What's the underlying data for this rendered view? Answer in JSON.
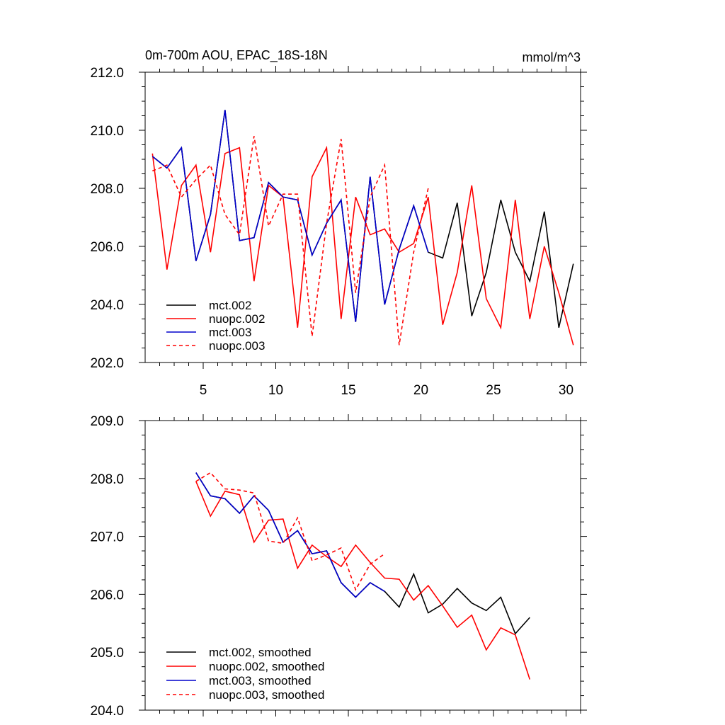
{
  "chart_data": [
    {
      "type": "line",
      "title": "0m-700m AOU, EPAC_18S-18N",
      "units": "mmol/m^3",
      "xlabel": "",
      "ylabel": "",
      "xlim": [
        1,
        31
      ],
      "ylim": [
        202,
        212
      ],
      "yticks": [
        "202.0",
        "204.0",
        "206.0",
        "208.0",
        "210.0",
        "212.0"
      ],
      "xticks": [
        "5",
        "10",
        "15",
        "20",
        "25",
        "30"
      ],
      "legend_position": "lower-left",
      "series": [
        {
          "name": "mct.002",
          "color": "#000000",
          "dash": "solid",
          "x": [
            1.5,
            2.5,
            3.5,
            4.5,
            5.5,
            6.5,
            7.5,
            8.5,
            9.5,
            10.5,
            11.5,
            12.5,
            13.5,
            14.5,
            15.5,
            16.5,
            17.5,
            18.5,
            19.5,
            20.5,
            21.5,
            22.5,
            23.5,
            24.5,
            25.5,
            26.5,
            27.5,
            28.5,
            29.5,
            30.5
          ],
          "values": [
            209.1,
            208.7,
            209.4,
            205.5,
            207.1,
            210.7,
            206.2,
            206.3,
            208.2,
            207.7,
            207.6,
            205.7,
            206.8,
            207.6,
            203.4,
            208.4,
            204.0,
            205.9,
            207.4,
            205.8,
            205.6,
            207.5,
            203.6,
            205.1,
            207.6,
            205.8,
            204.8,
            207.2,
            203.2,
            205.4
          ]
        },
        {
          "name": "nuopc.002",
          "color": "#ff0000",
          "dash": "solid",
          "x": [
            1.5,
            2.5,
            3.5,
            4.5,
            5.5,
            6.5,
            7.5,
            8.5,
            9.5,
            10.5,
            11.5,
            12.5,
            13.5,
            14.5,
            15.5,
            16.5,
            17.5,
            18.5,
            19.5,
            20.5,
            21.5,
            22.5,
            23.5,
            24.5,
            25.5,
            26.5,
            27.5,
            28.5,
            29.5,
            30.5
          ],
          "values": [
            209.2,
            205.2,
            208.1,
            208.8,
            205.8,
            209.2,
            209.4,
            204.8,
            208.1,
            207.7,
            203.2,
            208.4,
            209.4,
            203.5,
            207.7,
            206.4,
            206.6,
            205.8,
            206.1,
            207.7,
            203.3,
            205.1,
            208.1,
            204.2,
            203.2,
            207.6,
            203.5,
            206.0,
            204.4,
            202.6
          ]
        },
        {
          "name": "mct.003",
          "color": "#0000cc",
          "dash": "solid",
          "x": [
            1.5,
            2.5,
            3.5,
            4.5,
            5.5,
            6.5,
            7.5,
            8.5,
            9.5,
            10.5,
            11.5,
            12.5,
            13.5,
            14.5,
            15.5,
            16.5,
            17.5,
            18.5,
            19.5,
            20.5
          ],
          "values": [
            209.1,
            208.7,
            209.4,
            205.5,
            207.1,
            210.7,
            206.2,
            206.3,
            208.2,
            207.7,
            207.6,
            205.7,
            206.8,
            207.6,
            203.4,
            208.4,
            204.0,
            205.9,
            207.4,
            205.8
          ]
        },
        {
          "name": "nuopc.003",
          "color": "#ff0000",
          "dash": "dashed",
          "x": [
            1.5,
            2.5,
            3.5,
            4.5,
            5.5,
            6.5,
            7.5,
            8.5,
            9.5,
            10.5,
            11.5,
            12.5,
            13.5,
            14.5,
            15.5,
            16.5,
            17.5,
            18.5,
            19.5,
            20.5
          ],
          "values": [
            208.6,
            208.8,
            207.7,
            208.3,
            208.8,
            207.1,
            206.4,
            209.8,
            206.7,
            207.8,
            207.8,
            202.9,
            206.8,
            209.7,
            204.4,
            207.7,
            208.8,
            202.6,
            205.8,
            208.0
          ]
        }
      ]
    },
    {
      "type": "line",
      "title": "",
      "xlabel": "",
      "ylabel": "",
      "xlim": [
        1,
        31
      ],
      "ylim": [
        204,
        209
      ],
      "yticks": [
        "204.0",
        "205.0",
        "206.0",
        "207.0",
        "208.0",
        "209.0"
      ],
      "xticks": [],
      "legend_position": "lower-left",
      "series": [
        {
          "name": "mct.002, smoothed",
          "color": "#000000",
          "dash": "solid",
          "x": [
            4.5,
            5.5,
            6.5,
            7.5,
            8.5,
            9.5,
            10.5,
            11.5,
            12.5,
            13.5,
            14.5,
            15.5,
            16.5,
            17.5,
            18.5,
            19.5,
            20.5,
            21.5,
            22.5,
            23.5,
            24.5,
            25.5,
            26.5,
            27.5
          ],
          "values": [
            208.1,
            207.7,
            207.65,
            207.4,
            207.7,
            207.45,
            206.9,
            207.1,
            206.7,
            206.75,
            206.2,
            205.95,
            206.2,
            206.05,
            205.78,
            206.35,
            205.68,
            205.83,
            206.1,
            205.85,
            205.72,
            205.95,
            205.32,
            205.6
          ]
        },
        {
          "name": "nuopc.002, smoothed",
          "color": "#ff0000",
          "dash": "solid",
          "x": [
            4.5,
            5.5,
            6.5,
            7.5,
            8.5,
            9.5,
            10.5,
            11.5,
            12.5,
            13.5,
            14.5,
            15.5,
            16.5,
            17.5,
            18.5,
            19.5,
            20.5,
            21.5,
            22.5,
            23.5,
            24.5,
            25.5,
            26.5,
            27.5
          ],
          "values": [
            207.95,
            207.35,
            207.78,
            207.72,
            206.9,
            207.28,
            207.3,
            206.45,
            206.85,
            206.65,
            206.48,
            206.85,
            206.55,
            206.28,
            206.26,
            205.9,
            206.15,
            205.8,
            205.43,
            205.64,
            205.04,
            205.42,
            205.3,
            204.53
          ]
        },
        {
          "name": "mct.003, smoothed",
          "color": "#0000cc",
          "dash": "solid",
          "x": [
            4.5,
            5.5,
            6.5,
            7.5,
            8.5,
            9.5,
            10.5,
            11.5,
            12.5,
            13.5,
            14.5,
            15.5,
            16.5,
            17.5
          ],
          "values": [
            208.1,
            207.7,
            207.65,
            207.4,
            207.7,
            207.45,
            206.9,
            207.1,
            206.7,
            206.75,
            206.2,
            205.95,
            206.2,
            206.05
          ]
        },
        {
          "name": "nuopc.003, smoothed",
          "color": "#ff0000",
          "dash": "dashed",
          "x": [
            4.5,
            5.5,
            6.5,
            7.5,
            8.5,
            9.5,
            10.5,
            11.5,
            12.5,
            13.5,
            14.5,
            15.5,
            16.5,
            17.5
          ],
          "values": [
            207.95,
            208.1,
            207.82,
            207.8,
            207.75,
            206.92,
            206.88,
            207.32,
            206.58,
            206.68,
            206.8,
            206.08,
            206.52,
            206.7
          ]
        }
      ]
    }
  ]
}
